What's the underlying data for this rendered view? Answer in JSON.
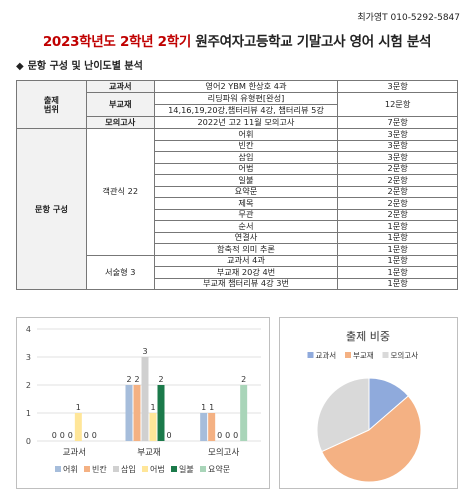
{
  "header": {
    "author": "최가영T  010-5292-5847",
    "title_red": "2023학년도 2학년 2학기",
    "title_rest": " 원주여자고등학교 기말고사 영어 시험 분석"
  },
  "section": {
    "diamond": "◆",
    "title": "문항 구성 및 난이도별 분석"
  },
  "table": {
    "scope_label_1": "출제",
    "scope_label_2": "범위",
    "scope_rows": [
      {
        "label": "교과서",
        "content": "영어2 YBM 한상호 4과",
        "count": "3문항"
      },
      {
        "label": "부교재",
        "content_1": "리딩파워 유형편[완성]",
        "content_2": "14,16,19,20강,챕터리뷰 4강,  챕터리뷰 5강",
        "count": "12문항"
      },
      {
        "label": "모의고사",
        "content": "2022년 고2 11월 모의고사",
        "count": "7문항"
      }
    ],
    "composition_label": "문항 구성",
    "objective_label": "객관식 22",
    "objective_items": [
      {
        "type": "어휘",
        "count": "3문항"
      },
      {
        "type": "빈칸",
        "count": "3문항"
      },
      {
        "type": "삽입",
        "count": "3문항"
      },
      {
        "type": "어법",
        "count": "2문항"
      },
      {
        "type": "일불",
        "count": "2문항"
      },
      {
        "type": "요약문",
        "count": "2문항"
      },
      {
        "type": "제목",
        "count": "2문항"
      },
      {
        "type": "무관",
        "count": "2문항"
      },
      {
        "type": "순서",
        "count": "1문항"
      },
      {
        "type": "연결사",
        "count": "1문항"
      },
      {
        "type": "함축적 의미 추론",
        "count": "1문항"
      }
    ],
    "subjective_label": "서술형 3",
    "subjective_items": [
      {
        "type": "교과서 4과",
        "count": "1문항"
      },
      {
        "type": "부교재 20강 4번",
        "count": "1문항"
      },
      {
        "type": "부교재 챕터리뷰 4강 3번",
        "count": "1문항"
      }
    ]
  },
  "chart_data": [
    {
      "type": "bar",
      "categories": [
        "교과서",
        "부교재",
        "모의고사"
      ],
      "ylim": [
        0,
        4
      ],
      "yticks": [
        0,
        1,
        2,
        3,
        4
      ],
      "grid": true,
      "legend": "bottom",
      "series": [
        {
          "name": "어휘",
          "color": "#a6bddb",
          "values": [
            0,
            2,
            1
          ]
        },
        {
          "name": "빈칸",
          "color": "#f4b183",
          "values": [
            0,
            2,
            1
          ]
        },
        {
          "name": "삽입",
          "color": "#d0d0d0",
          "values": [
            0,
            3,
            0
          ]
        },
        {
          "name": "어법",
          "color": "#ffe699",
          "values": [
            1,
            1,
            0
          ]
        },
        {
          "name": "일불",
          "color": "#1b7a4a",
          "values": [
            0,
            2,
            0
          ]
        },
        {
          "name": "요약문",
          "color": "#a9d5b9",
          "values": [
            0,
            0,
            2
          ]
        }
      ]
    },
    {
      "type": "pie",
      "title": "출제 비중",
      "legend": "top",
      "labels": [
        "교과서",
        "부교재",
        "모의고사"
      ],
      "values": [
        3,
        12,
        7
      ],
      "colors": [
        "#8faadc",
        "#f4b183",
        "#d9d9d9"
      ]
    }
  ]
}
